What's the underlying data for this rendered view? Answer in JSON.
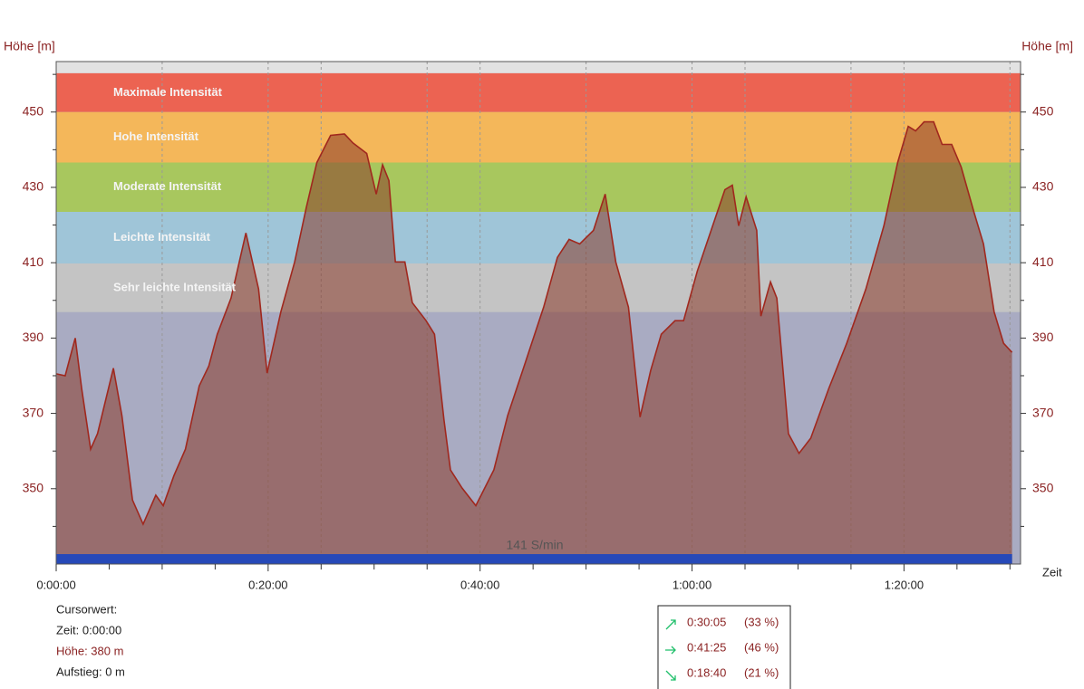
{
  "chart_data": {
    "type": "area",
    "y_label": "Höhe [m]",
    "y2_label": "Höhe [m]",
    "x_label": "Zeit",
    "xlim": [
      0,
      91
    ],
    "ylim": [
      330,
      463.4
    ],
    "xticks": [
      {
        "value": 0,
        "label": "0:00:00"
      },
      {
        "value": 20,
        "label": "0:20:00"
      },
      {
        "value": 40,
        "label": "0:40:00"
      },
      {
        "value": 60,
        "label": "1:00:00"
      },
      {
        "value": 80,
        "label": "1:20:00"
      }
    ],
    "xminor": [
      5,
      10,
      15,
      25,
      30,
      35,
      45,
      50,
      55,
      65,
      70,
      75,
      85,
      90
    ],
    "yticks": [
      350,
      370,
      390,
      410,
      430,
      450
    ],
    "yminor": [
      340,
      360,
      380,
      400,
      420,
      440,
      460
    ],
    "grid": true,
    "zones": [
      {
        "name": "Maximale Intensität",
        "from": 450,
        "to": 460.3,
        "color": "#ec6352"
      },
      {
        "name": "Hohe Intensität",
        "from": 436.6,
        "to": 450,
        "color": "#f4b75a"
      },
      {
        "name": "Moderate Intensität",
        "from": 423.5,
        "to": 436.6,
        "color": "#a8c75e"
      },
      {
        "name": "Leichte Intensität",
        "from": 409.8,
        "to": 423.5,
        "color": "#9fc5d8"
      },
      {
        "name": "Sehr leichte Intensität",
        "from": 396.9,
        "to": 409.8,
        "color": "#c4c4c4"
      }
    ],
    "cadence_label": "141 S/min",
    "x": [
      0,
      0.85,
      1.8,
      2.4,
      3.25,
      3.9,
      5.4,
      6.2,
      7.2,
      8.2,
      9.4,
      10.1,
      11.1,
      12.2,
      13.5,
      14.4,
      15.2,
      16.5,
      17.9,
      19.1,
      19.9,
      21.2,
      22.5,
      23.6,
      24.6,
      25.9,
      27.2,
      28.0,
      29.3,
      30.2,
      30.8,
      31.4,
      32.0,
      32.9,
      33.6,
      34.9,
      35.7,
      36.6,
      37.2,
      38.3,
      39.6,
      41.3,
      42.6,
      44.3,
      46.0,
      47.3,
      48.4,
      49.4,
      50.7,
      51.8,
      52.8,
      54.0,
      55.1,
      56.1,
      57.1,
      58.4,
      59.2,
      60.5,
      61.8,
      63.1,
      63.8,
      64.4,
      65.1,
      66.1,
      66.5,
      67.4,
      68.0,
      69.1,
      70.1,
      71.2,
      72.9,
      74.6,
      76.4,
      78.1,
      79.4,
      80.4,
      81.1,
      81.9,
      82.8,
      83.6,
      84.5,
      85.4,
      86.6,
      87.5,
      88.5,
      89.4,
      90.2
    ],
    "series": [
      {
        "name": "Höhe",
        "color": "#a0281e",
        "values": [
          380.5,
          380,
          390,
          376.6,
          360.5,
          364.6,
          382,
          369.4,
          347,
          340.6,
          348.3,
          345.5,
          353.4,
          360.5,
          377.3,
          382.6,
          391,
          400.6,
          417.9,
          403,
          380.7,
          397,
          410.2,
          424.6,
          436.6,
          443.8,
          444.2,
          441.8,
          439,
          428.2,
          436,
          431.8,
          410.2,
          410.2,
          399.4,
          394.6,
          391,
          368.2,
          355,
          350.2,
          345.5,
          355,
          369.4,
          383.8,
          398.2,
          411.4,
          416.2,
          415,
          418.6,
          428.2,
          410.2,
          398.2,
          369,
          381.4,
          391,
          394.6,
          394.6,
          407.8,
          418.6,
          429.4,
          430.6,
          419.8,
          427.5,
          418.6,
          395.8,
          404.9,
          400.6,
          364.6,
          359.4,
          363.4,
          376.6,
          388.6,
          403,
          419.8,
          436.6,
          446.2,
          445,
          447.4,
          447.4,
          441.4,
          441.4,
          435.4,
          423.4,
          415,
          397,
          388.6,
          386.2
        ]
      }
    ]
  },
  "cursor": {
    "title": "Cursorwert:",
    "rows": [
      "Zeit: 0:00:00",
      "Höhe:  380 m",
      "Aufstieg: 0 m"
    ]
  },
  "summary": [
    {
      "time": "0:30:05",
      "share": "(33 %)"
    },
    {
      "time": "0:41:25",
      "share": "(46 %)"
    },
    {
      "time": "0:18:40",
      "share": "(21 %)"
    }
  ]
}
